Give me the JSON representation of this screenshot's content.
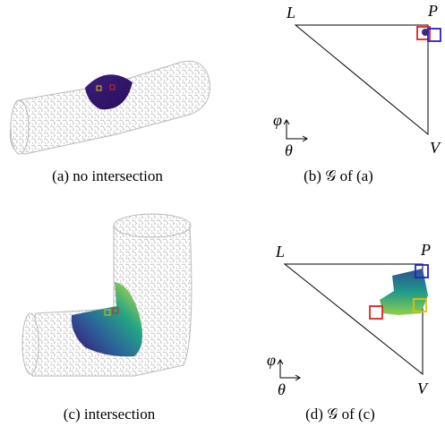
{
  "panels": [
    {
      "caption": "(a) no intersection"
    },
    {
      "caption": "(b) 𝒢 of (a)",
      "vertex_labels": [
        "L",
        "P",
        "V"
      ],
      "axis_labels": [
        "φ",
        "θ"
      ]
    },
    {
      "caption": "(c) intersection"
    },
    {
      "caption": "(d) 𝒢 of (c)",
      "vertex_labels": [
        "L",
        "P",
        "V"
      ],
      "axis_labels": [
        "φ",
        "θ"
      ]
    }
  ]
}
